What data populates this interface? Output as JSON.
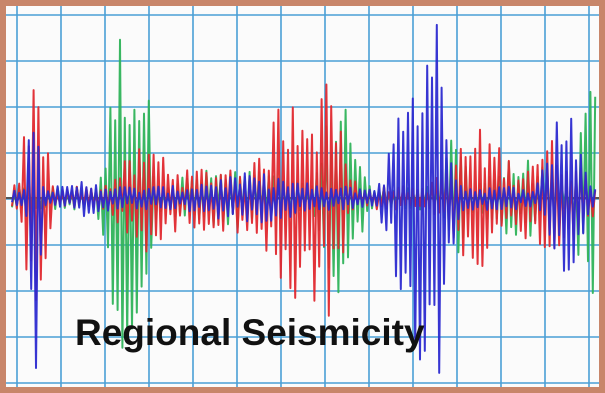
{
  "caption": "Regional Seismicity",
  "colors": {
    "grid": "#4a9fd6",
    "border": "#c8866a",
    "baseline": "#555555",
    "trace_red": "#e0282e",
    "trace_green": "#2fb35a",
    "trace_blue": "#2c2ad0"
  },
  "traces": [
    "red",
    "green",
    "blue"
  ]
}
